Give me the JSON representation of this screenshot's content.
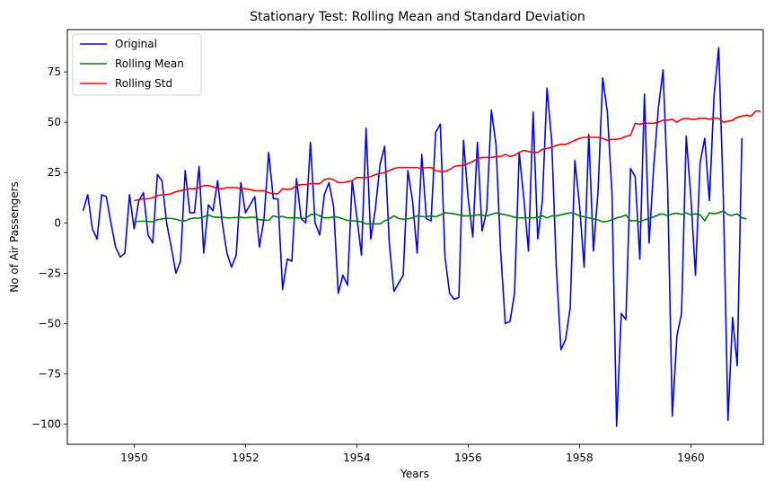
{
  "chart_data": {
    "type": "line",
    "title": "Stationary Test: Rolling Mean and Standard Deviation",
    "xlabel": "Years",
    "ylabel": "No of Air Passengers",
    "xlim": [
      1948.8,
      1961.3
    ],
    "ylim": [
      -110,
      96
    ],
    "xticks": [
      1950,
      1952,
      1954,
      1956,
      1958,
      1960
    ],
    "yticks": [
      -100,
      -75,
      -50,
      -25,
      0,
      25,
      50,
      75
    ],
    "legend_position": "top-left",
    "grid": false,
    "series": [
      {
        "name": "Original",
        "color": "#0000ff",
        "start": 1949.0833,
        "step": 0.0833333,
        "values": [
          6,
          14,
          -3,
          -8,
          14,
          13,
          0,
          -12,
          -17,
          -15,
          14,
          -3,
          11,
          15,
          -6,
          -10,
          24,
          21,
          0,
          -12,
          -25,
          -19,
          26,
          5,
          5,
          28,
          -15,
          9,
          6,
          21,
          0,
          -15,
          -22,
          -16,
          20,
          5,
          9,
          13,
          -12,
          2,
          35,
          12,
          12,
          -33,
          -18,
          -19,
          22,
          2,
          0,
          40,
          0,
          -6,
          14,
          20,
          8,
          -35,
          -26,
          -31,
          21,
          3,
          -16,
          47,
          -8,
          7,
          29,
          38,
          -10,
          -34,
          -30,
          -26,
          26,
          11,
          -15,
          34,
          2,
          1,
          45,
          49,
          -17,
          -35,
          -38,
          -37,
          41,
          12,
          -7,
          40,
          -4,
          6,
          56,
          39,
          -14,
          -50,
          -49,
          -35,
          35,
          12,
          -14,
          55,
          -8,
          11,
          67,
          41,
          -22,
          -63,
          -58,
          -42,
          31,
          9,
          -22,
          44,
          -14,
          16,
          72,
          55,
          15,
          -101,
          -45,
          -48,
          27,
          23,
          -18,
          64,
          -10,
          28,
          57,
          76,
          18,
          -96,
          -56,
          -45,
          43,
          13,
          -26,
          30,
          42,
          11,
          63,
          87,
          13,
          -98,
          -47,
          -71,
          42
        ]
      },
      {
        "name": "Rolling Mean",
        "color": "#008000",
        "start": 1950.0,
        "step": 0.0833333,
        "values": [
          0.5,
          0.8,
          0.8,
          0.7,
          0.5,
          1.5,
          2.0,
          2.3,
          2.2,
          1.8,
          1.2,
          1.0,
          2.0,
          2.5,
          2.3,
          3.0,
          4.0,
          3.0,
          2.8,
          2.8,
          2.5,
          2.5,
          2.7,
          2.8,
          2.5,
          2.8,
          2.8,
          1.5,
          1.5,
          1.2,
          3.5,
          2.8,
          3.2,
          2.5,
          2.5,
          2.5,
          2.3,
          2.3,
          4.0,
          4.5,
          3.5,
          2.5,
          2.5,
          3.0,
          2.8,
          2.0,
          1.2,
          1.0,
          1.0,
          0.5,
          -0.5,
          -0.5,
          -0.5,
          -0.5,
          1.0,
          2.0,
          3.5,
          2.2,
          1.8,
          2.0,
          2.5,
          3.5,
          3.2,
          3.0,
          3.5,
          3.0,
          4.0,
          5.0,
          4.8,
          4.5,
          4.0,
          3.5,
          3.5,
          3.5,
          4.0,
          3.8,
          3.5,
          4.2,
          5.0,
          4.5,
          4.0,
          3.5,
          2.8,
          2.5,
          2.5,
          2.5,
          2.5,
          2.8,
          3.5,
          2.5,
          3.5,
          3.5,
          4.0,
          4.5,
          5.0,
          4.5,
          3.5,
          3.0,
          2.5,
          2.0,
          1.5,
          0.5,
          0.8,
          1.5,
          2.5,
          3.0,
          4.0,
          1.0,
          1.2,
          0.5,
          1.5,
          2.2,
          3.0,
          4.0,
          4.5,
          3.5,
          4.5,
          4.8,
          4.2,
          5.0,
          4.0,
          4.5,
          4.0,
          1.0,
          5.0,
          4.5,
          5.0,
          6.0,
          4.0,
          3.8,
          4.5,
          2.5,
          2.0
        ]
      },
      {
        "name": "Rolling Std",
        "color": "#ff0000",
        "start": 1950.0,
        "step": 0.0833333,
        "values": [
          11,
          11.5,
          12,
          12,
          12.5,
          13.5,
          14,
          14,
          14.5,
          15.5,
          16,
          16.5,
          17,
          17,
          17.5,
          18.5,
          18.5,
          18,
          17,
          17,
          17.5,
          17.5,
          17.5,
          17,
          17,
          16.5,
          16,
          16,
          16,
          15,
          14.5,
          14.5,
          17,
          16.5,
          17,
          18.5,
          19,
          19,
          19.5,
          19.5,
          19.5,
          21.5,
          22,
          21.5,
          20,
          20,
          20.5,
          21,
          22.5,
          22.5,
          22.5,
          23,
          24,
          24.5,
          25,
          26,
          27,
          27.5,
          27.5,
          27.5,
          27.5,
          27.5,
          27,
          27.5,
          27.5,
          26,
          25.5,
          25.5,
          26.5,
          28,
          28.5,
          28.5,
          29.5,
          30.5,
          32,
          32.5,
          32.5,
          32.5,
          33,
          33,
          34,
          33,
          33.5,
          35,
          36,
          35.5,
          35,
          35,
          36.5,
          37,
          37.5,
          38.5,
          39,
          39,
          40,
          41,
          42,
          42.5,
          42.5,
          42.5,
          42.5,
          42,
          41,
          41.5,
          41.5,
          42,
          43,
          43.5,
          49.5,
          49,
          49.5,
          49.5,
          49.5,
          50,
          51,
          51,
          51.5,
          50,
          51.5,
          52,
          51.5,
          51.5,
          52,
          52,
          51.5,
          52,
          52,
          50,
          50.5,
          51,
          52.5,
          53,
          53.5,
          53,
          55.5,
          55.5
        ]
      }
    ]
  }
}
